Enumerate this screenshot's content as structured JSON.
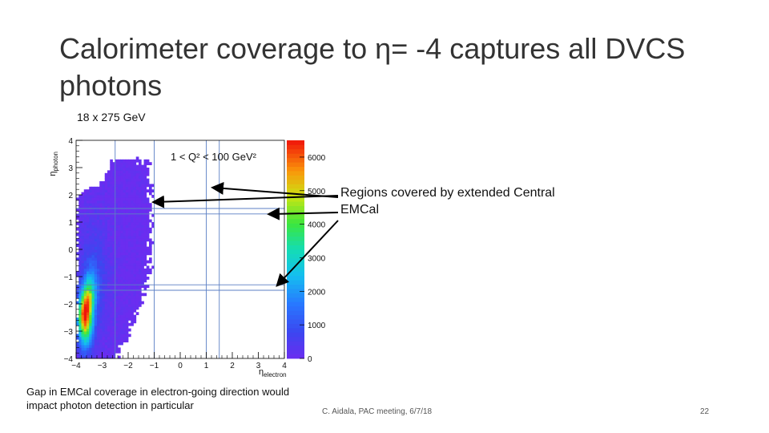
{
  "slide": {
    "title": "Calorimeter coverage to η= -4 captures all DVCS photons",
    "subtitle": "18 x 275 GeV",
    "callout": "Regions covered by extended Central EMCal",
    "caption": "Gap in EMCal coverage in electron-going direction would impact photon detection in particular",
    "footer": "C. Aidala, PAC meeting, 6/7/18",
    "page_number": "22"
  },
  "chart_data": {
    "type": "heatmap",
    "title": "",
    "annotation": "1 < Q² < 100 GeV²",
    "xlabel": "η_electron",
    "ylabel": "η_photon",
    "xlim": [
      -4,
      4
    ],
    "ylim": [
      -4,
      4
    ],
    "x_ticks": [
      "−4",
      "−3",
      "−2",
      "−1",
      "0",
      "1",
      "2",
      "3",
      "4"
    ],
    "y_ticks": [
      "−4",
      "−3",
      "−2",
      "−1",
      "0",
      "1",
      "2",
      "3",
      "4"
    ],
    "colorbar": {
      "min": 0,
      "max": 6500,
      "ticks": [
        "0",
        "1000",
        "2000",
        "3000",
        "4000",
        "5000",
        "6000"
      ]
    },
    "colors": {
      "background": "#ffffff",
      "low": "#6b2df0",
      "text": "#111111",
      "grid_line": "#5b7fc4"
    },
    "vertical_lines_x": [
      -2.5,
      -1.0,
      1.0,
      1.5
    ],
    "horizontal_lines_y": [
      1.5,
      1.3,
      -1.3,
      -1.5
    ]
  }
}
